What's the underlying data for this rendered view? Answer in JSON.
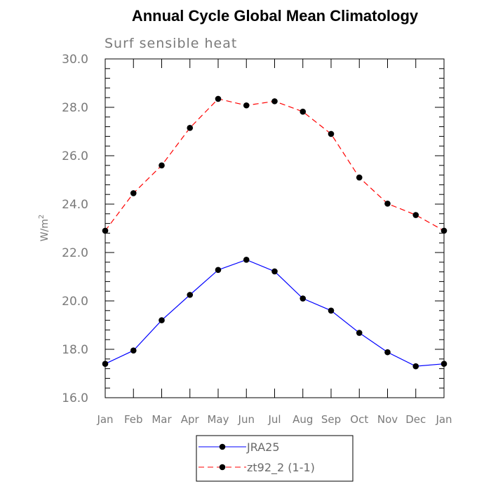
{
  "chart_data": {
    "type": "line",
    "title": "Annual Cycle Global Mean Climatology",
    "subtitle": "Surf sensible heat",
    "xlabel": "",
    "ylabel": "W/m",
    "ylabel_superscript": "2",
    "categories": [
      "Jan",
      "Feb",
      "Mar",
      "Apr",
      "May",
      "Jun",
      "Jul",
      "Aug",
      "Sep",
      "Oct",
      "Nov",
      "Dec",
      "Jan"
    ],
    "ylim": [
      16.0,
      30.0
    ],
    "yticks": [
      "16.0",
      "18.0",
      "20.0",
      "22.0",
      "24.0",
      "26.0",
      "28.0",
      "30.0"
    ],
    "grid": false,
    "legend_position": "bottom-center",
    "series": [
      {
        "name": "JRA25",
        "color": "#0000ff",
        "dash": "solid",
        "marker": "filled-circle",
        "values": [
          17.4,
          17.95,
          19.2,
          20.25,
          21.28,
          21.7,
          21.22,
          20.1,
          19.6,
          18.68,
          17.88,
          17.3,
          17.4
        ]
      },
      {
        "name": "zt92_2 (1-1)",
        "color": "#ff0000",
        "dash": "dashed",
        "marker": "filled-circle",
        "values": [
          22.9,
          24.45,
          25.6,
          27.15,
          28.35,
          28.08,
          28.25,
          27.82,
          26.9,
          25.1,
          24.02,
          23.55,
          22.9
        ]
      }
    ]
  }
}
